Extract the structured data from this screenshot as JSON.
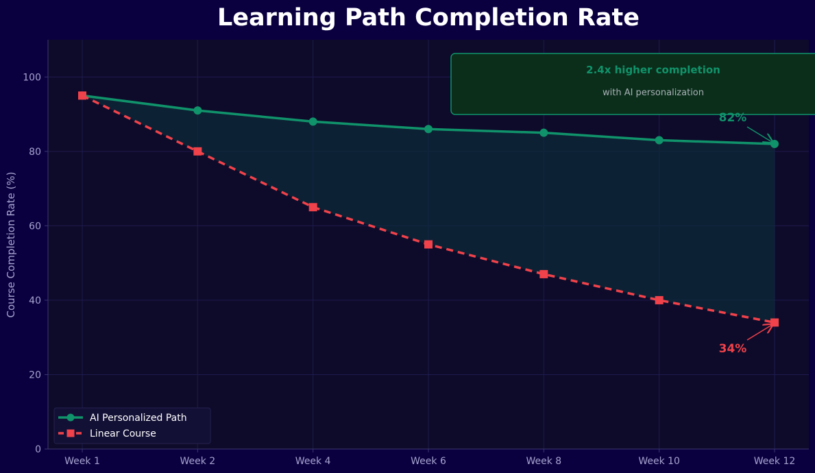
{
  "chart_data": {
    "type": "line",
    "title": "Learning Path Completion Rate",
    "xlabel": "",
    "ylabel": "Course Completion Rate (%)",
    "categories": [
      "Week 1",
      "Week 2",
      "Week 4",
      "Week 6",
      "Week 8",
      "Week 10",
      "Week 12"
    ],
    "ylim": [
      0,
      110
    ],
    "yticks": [
      0,
      20,
      40,
      60,
      80,
      100
    ],
    "grid": true,
    "legend_position": "lower-left",
    "series": [
      {
        "name": "AI Personalized Path",
        "values": [
          95,
          91,
          88,
          86,
          85,
          83,
          82
        ],
        "color": "#10936a",
        "marker": "circle",
        "line_style": "solid"
      },
      {
        "name": "Linear Course",
        "values": [
          95,
          80,
          65,
          55,
          47,
          40,
          34
        ],
        "color": "#f0424a",
        "marker": "square",
        "line_style": "dashed"
      }
    ],
    "annotations": {
      "callout_title": "2.4x higher completion",
      "callout_subtitle": "with AI personalization",
      "end_label_ai": "82%",
      "end_label_linear": "34%"
    },
    "colors": {
      "page_background": "#0a0040",
      "plot_background": "#0e0b2a",
      "grid": "#1e1b4f",
      "tick_text": "#a7a4cf",
      "title_text": "#ffffff",
      "callout_fill": "#0b2e1b",
      "callout_subtitle_text": "#a9b1b5",
      "fill_between": "#0d2a3a"
    }
  }
}
